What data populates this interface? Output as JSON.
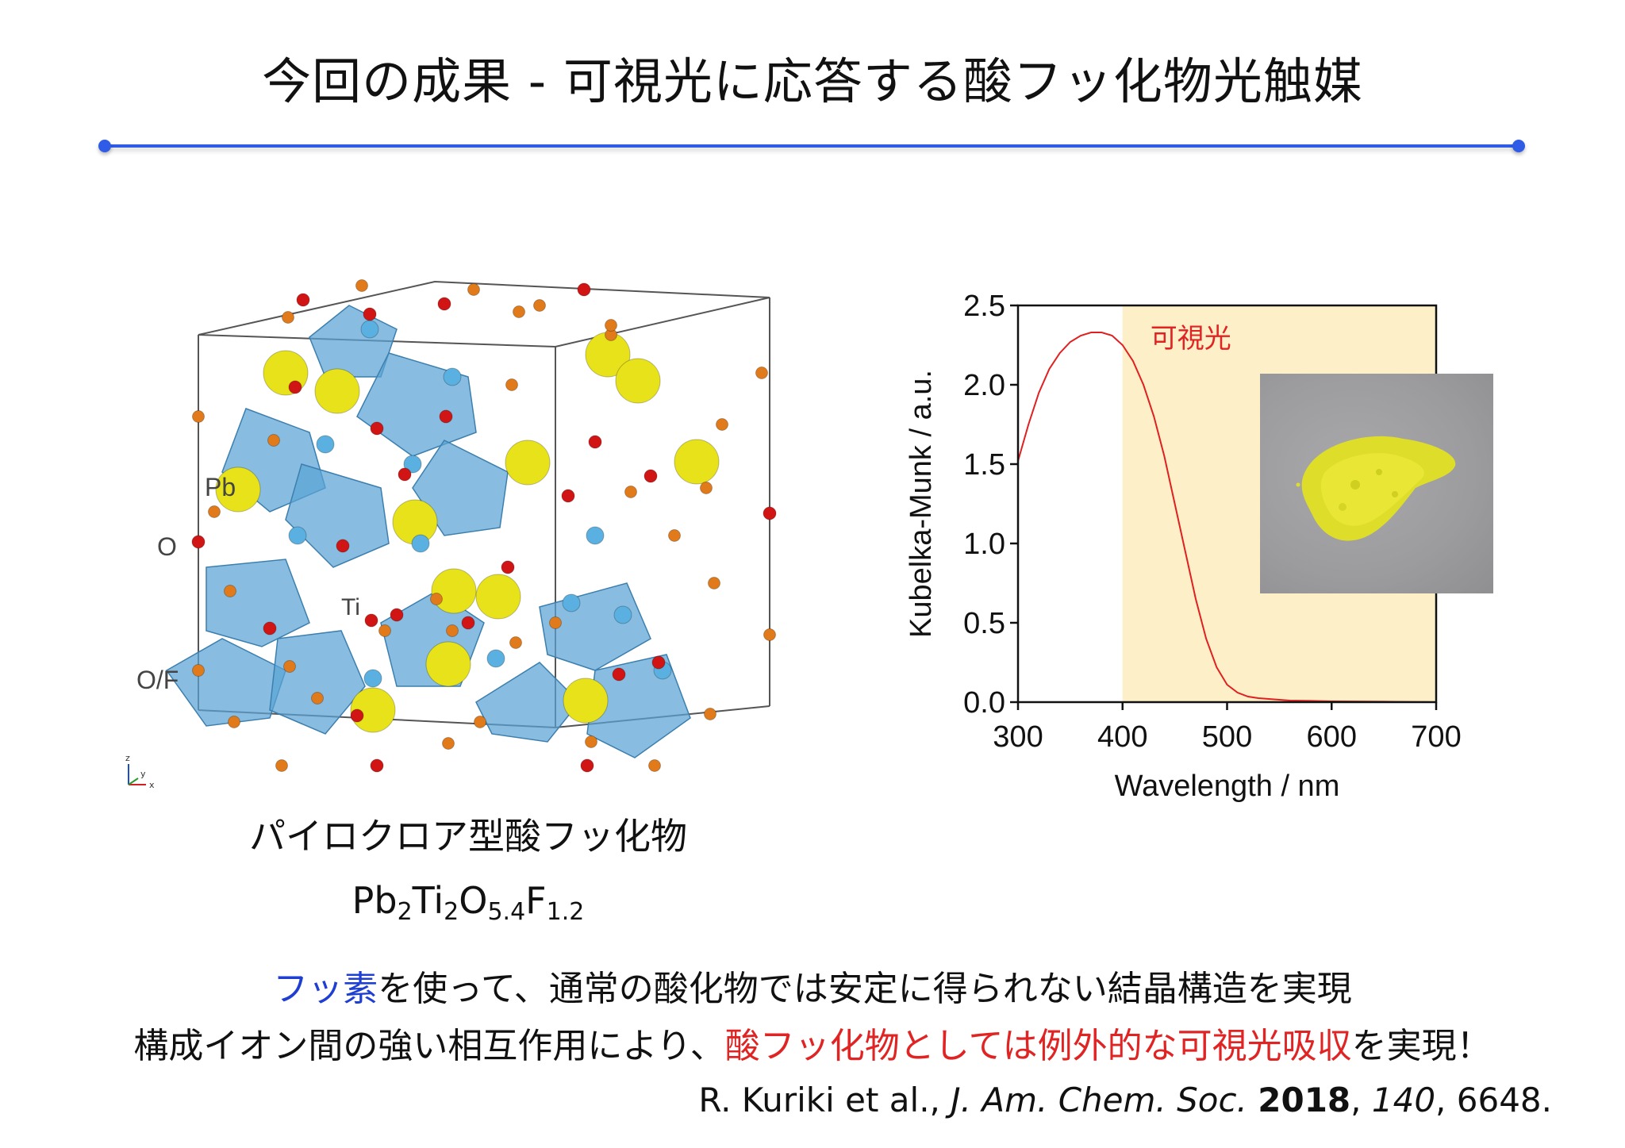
{
  "title": "今回の成果 - 可視光に応答する酸フッ化物光触媒",
  "crystal": {
    "labels": {
      "pb": "Pb",
      "o": "O",
      "ti": "Ti",
      "of": "O/F"
    },
    "axes": {
      "z": "z",
      "y": "y",
      "x": "x"
    },
    "caption": "パイロクロア型酸フッ化物",
    "formula": {
      "el1": "Pb",
      "n1": "2",
      "el2": "Ti",
      "n2": "2",
      "el3": "O",
      "n3": "5.4",
      "el4": "F",
      "n4": "1.2"
    },
    "colors": {
      "pb": "#e8e21a",
      "o": "#d11414",
      "of": "#e07a1a",
      "ti": "#5ab0e0",
      "octahedron": "#5aa3d6"
    }
  },
  "chart_data": {
    "type": "line",
    "xlabel": "Wavelength / nm",
    "ylabel": "Kubelka-Munk / a.u.",
    "xlim": [
      300,
      700
    ],
    "ylim": [
      0.0,
      2.5
    ],
    "xticks": [
      300,
      400,
      500,
      600,
      700
    ],
    "yticks": [
      "0.0",
      "0.5",
      "1.0",
      "1.5",
      "2.0",
      "2.5"
    ],
    "visible_region": {
      "label": "可視光",
      "x_start": 400,
      "x_end": 700,
      "color": "#fdf0c8"
    },
    "series": [
      {
        "color": "#e02020",
        "x": [
          300,
          310,
          320,
          330,
          340,
          350,
          360,
          370,
          380,
          390,
          400,
          410,
          420,
          430,
          440,
          450,
          460,
          470,
          480,
          490,
          500,
          510,
          520,
          530,
          540,
          550,
          560,
          580,
          600,
          650,
          700
        ],
        "y": [
          1.52,
          1.75,
          1.95,
          2.1,
          2.2,
          2.27,
          2.31,
          2.33,
          2.33,
          2.31,
          2.25,
          2.15,
          2.0,
          1.8,
          1.55,
          1.25,
          0.95,
          0.65,
          0.4,
          0.22,
          0.11,
          0.06,
          0.035,
          0.025,
          0.02,
          0.015,
          0.01,
          0.008,
          0.005,
          0.003,
          0.0
        ]
      }
    ],
    "inset_photo": "yellow-powder-photo"
  },
  "summary": {
    "line1_blue": "フッ素",
    "line1_rest": "を使って、通常の酸化物では安定に得られない結晶構造を実現",
    "line2_start": "構成イオン間の強い相互作用により、",
    "line2_red": "酸フッ化物としては例外的な可視光吸収",
    "line2_end": "を実現！"
  },
  "citation": {
    "authors": "R. Kuriki et al.,",
    "journal": "J. Am. Chem. Soc.",
    "year": "2018",
    "volume": "140",
    "pages": "6648."
  }
}
